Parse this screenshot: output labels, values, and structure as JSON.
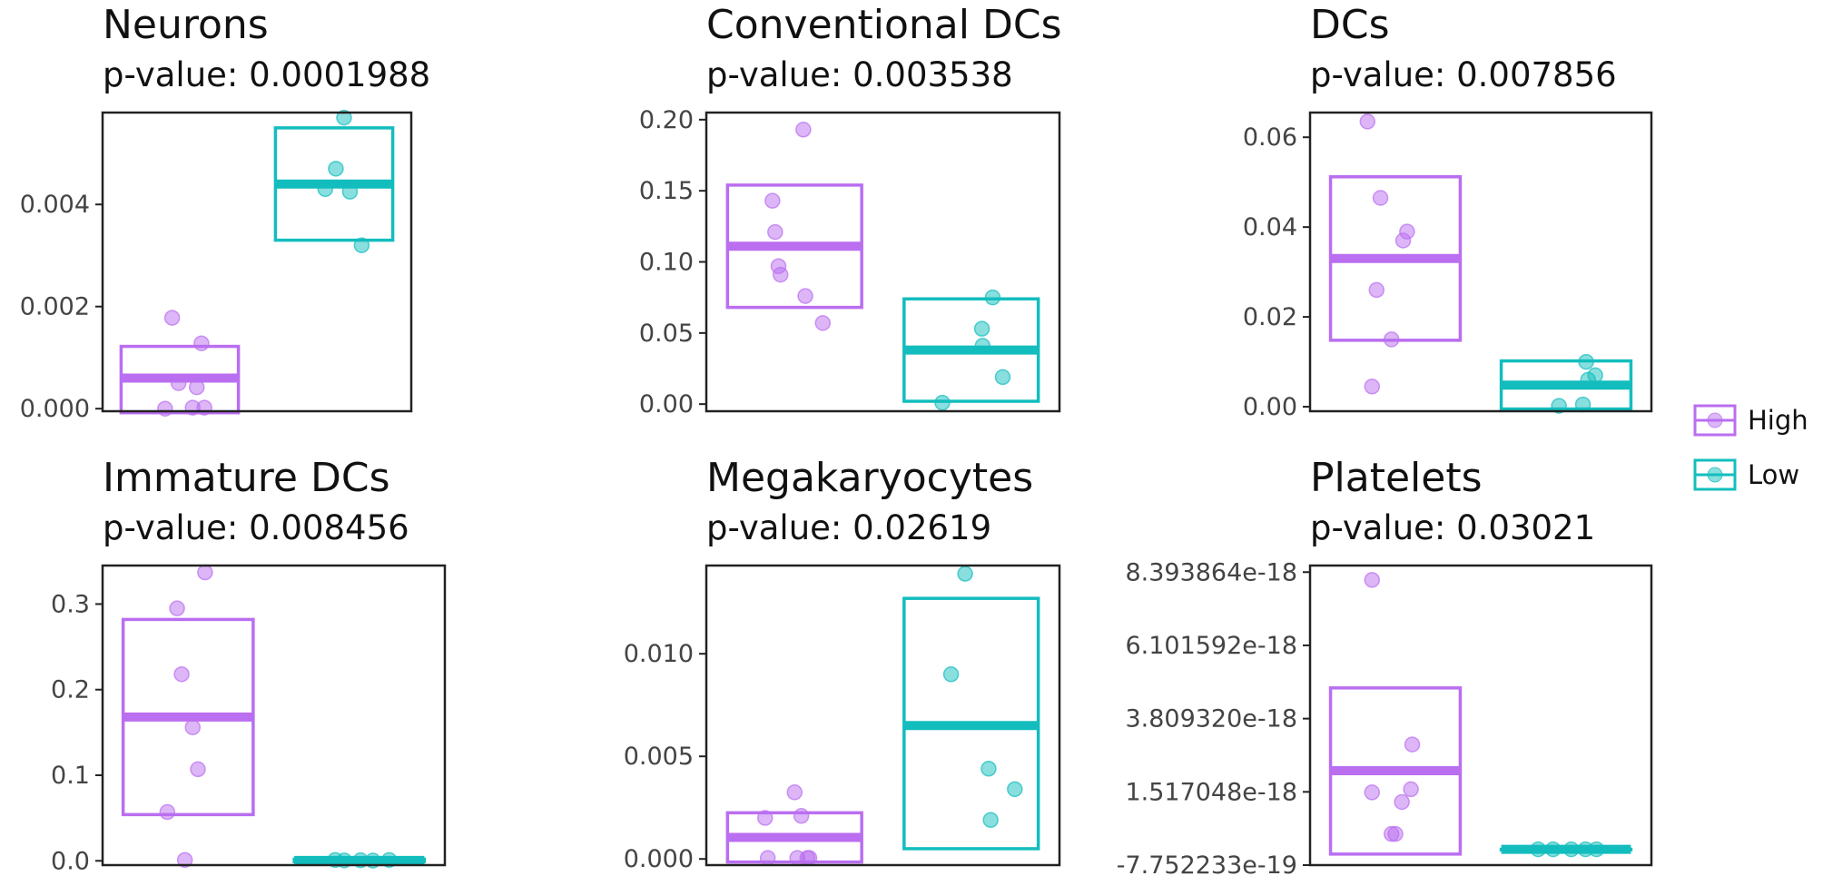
{
  "colors": {
    "High": "#BA6EF0",
    "Low": "#13BDBE",
    "axis": "#222222",
    "text": "#444444"
  },
  "legend": {
    "placement": "right",
    "entries": [
      {
        "label": "High",
        "group": "High"
      },
      {
        "label": "Low",
        "group": "Low"
      }
    ]
  },
  "chart_data": [
    {
      "type": "crossbar-dot",
      "title": "Neurons",
      "subtitle": "p-value: 0.0001988",
      "ylim": [
        -5e-05,
        0.0058
      ],
      "yticks": [
        0,
        0.002,
        0.004
      ],
      "ytick_labels": [
        "0.000",
        "0.002",
        "0.004"
      ],
      "groups": [
        "High",
        "Low"
      ],
      "series": [
        {
          "name": "High",
          "box": {
            "min": -8e-05,
            "mean": 0.0006,
            "max": 0.00122
          },
          "points": [
            [
              -0.25,
              0.0
            ],
            [
              -0.13,
              0.00178
            ],
            [
              -0.02,
              0.0005
            ],
            [
              0.22,
              2e-05
            ],
            [
              0.29,
              0.00042
            ],
            [
              0.37,
              0.00128
            ],
            [
              0.42,
              2e-05
            ]
          ]
        },
        {
          "name": "Low",
          "box": {
            "min": 0.0033,
            "mean": 0.0044,
            "max": 0.0055
          },
          "points": [
            [
              -0.15,
              0.0043
            ],
            [
              0.03,
              0.0047
            ],
            [
              0.17,
              0.0057
            ],
            [
              0.27,
              0.00425
            ],
            [
              0.47,
              0.0032
            ]
          ]
        }
      ]
    },
    {
      "type": "crossbar-dot",
      "title": "Conventional DCs",
      "subtitle": "p-value: 0.003538",
      "ylim": [
        -0.005,
        0.205
      ],
      "yticks": [
        0,
        0.05,
        0.1,
        0.15,
        0.2
      ],
      "ytick_labels": [
        "0.00",
        "0.05",
        "0.10",
        "0.15",
        "0.20"
      ],
      "groups": [
        "High",
        "Low"
      ],
      "series": [
        {
          "name": "High",
          "box": {
            "min": 0.068,
            "mean": 0.111,
            "max": 0.154
          },
          "points": [
            [
              -0.33,
              0.143
            ],
            [
              -0.29,
              0.121
            ],
            [
              -0.24,
              0.097
            ],
            [
              -0.21,
              0.091
            ],
            [
              0.13,
              0.193
            ],
            [
              0.16,
              0.076
            ],
            [
              0.42,
              0.057
            ]
          ]
        },
        {
          "name": "Low",
          "box": {
            "min": 0.002,
            "mean": 0.038,
            "max": 0.074
          },
          "points": [
            [
              -0.43,
              0.001
            ],
            [
              0.16,
              0.053
            ],
            [
              0.17,
              0.041
            ],
            [
              0.32,
              0.075
            ],
            [
              0.47,
              0.019
            ]
          ]
        }
      ]
    },
    {
      "type": "crossbar-dot",
      "title": "DCs",
      "subtitle": "p-value: 0.007856",
      "ylim": [
        -0.001,
        0.0655
      ],
      "yticks": [
        0,
        0.02,
        0.04,
        0.06
      ],
      "ytick_labels": [
        "0.00",
        "0.02",
        "0.04",
        "0.06"
      ],
      "groups": [
        "High",
        "Low"
      ],
      "series": [
        {
          "name": "High",
          "box": {
            "min": 0.0148,
            "mean": 0.033,
            "max": 0.0512
          },
          "points": [
            [
              -0.43,
              0.0635
            ],
            [
              -0.36,
              0.0045
            ],
            [
              -0.29,
              0.026
            ],
            [
              -0.23,
              0.0465
            ],
            [
              -0.06,
              0.015
            ],
            [
              0.12,
              0.037
            ],
            [
              0.18,
              0.039
            ]
          ]
        },
        {
          "name": "Low",
          "box": {
            "min": -0.0005,
            "mean": 0.0048,
            "max": 0.0102
          },
          "points": [
            [
              -0.11,
              0.0002
            ],
            [
              0.26,
              0.0005
            ],
            [
              0.31,
              0.01
            ],
            [
              0.34,
              0.006
            ],
            [
              0.45,
              0.007
            ]
          ]
        }
      ]
    },
    {
      "type": "crossbar-dot",
      "title": "Immature DCs",
      "subtitle": "p-value: 0.008456",
      "ylim": [
        -0.005,
        0.345
      ],
      "yticks": [
        0,
        0.1,
        0.2,
        0.3
      ],
      "ytick_labels": [
        "0.0",
        "0.1",
        "0.2",
        "0.3"
      ],
      "groups": [
        "High",
        "Low"
      ],
      "series": [
        {
          "name": "High",
          "box": {
            "min": 0.054,
            "mean": 0.168,
            "max": 0.282
          },
          "points": [
            [
              -0.32,
              0.057
            ],
            [
              -0.17,
              0.295
            ],
            [
              -0.1,
              0.218
            ],
            [
              -0.05,
              0.001
            ],
            [
              0.07,
              0.156
            ],
            [
              0.15,
              0.107
            ],
            [
              0.26,
              0.337
            ]
          ]
        },
        {
          "name": "Low",
          "box": {
            "min": -0.001,
            "mean": 0.0005,
            "max": 0.002
          },
          "points": [
            [
              -0.37,
              0.001
            ],
            [
              -0.23,
              0.0005
            ],
            [
              0.02,
              0.0007
            ],
            [
              0.21,
              0.0003
            ],
            [
              0.46,
              0.001
            ]
          ]
        }
      ]
    },
    {
      "type": "crossbar-dot",
      "title": "Megakaryocytes",
      "subtitle": "p-value: 0.02619",
      "ylim": [
        -0.0003,
        0.0143
      ],
      "yticks": [
        0,
        0.005,
        0.01
      ],
      "ytick_labels": [
        "0.000",
        "0.005",
        "0.010"
      ],
      "groups": [
        "High",
        "Low"
      ],
      "series": [
        {
          "name": "High",
          "box": {
            "min": -0.00015,
            "mean": 0.00105,
            "max": 0.00225
          },
          "points": [
            [
              -0.44,
              0.002
            ],
            [
              -0.4,
              5e-05
            ],
            [
              0.0,
              0.00325
            ],
            [
              0.04,
              5e-05
            ],
            [
              0.1,
              0.0021
            ],
            [
              0.19,
              5e-05
            ],
            [
              0.22,
              5e-05
            ]
          ]
        },
        {
          "name": "Low",
          "box": {
            "min": 0.0005,
            "mean": 0.0065,
            "max": 0.0127
          },
          "points": [
            [
              -0.3,
              0.009
            ],
            [
              -0.09,
              0.0139
            ],
            [
              0.26,
              0.0044
            ],
            [
              0.29,
              0.0019
            ],
            [
              0.65,
              0.0034
            ]
          ]
        }
      ]
    },
    {
      "type": "crossbar-dot",
      "title": "Platelets",
      "subtitle": "p-value: 0.03021",
      "ylim": [
        -7.752233e-19,
        8.6e-18
      ],
      "yticks": [
        -7.752233e-19,
        1.517048e-18,
        3.80932e-18,
        6.101592e-18,
        8.393864e-18
      ],
      "ytick_labels": [
        "-7.752233e-19",
        "1.517048e-18",
        "3.809320e-18",
        "6.101592e-18",
        "8.393864e-18"
      ],
      "groups": [
        "High",
        "Low"
      ],
      "series": [
        {
          "name": "High",
          "box": {
            "min": -4.3e-19,
            "mean": 2.18e-18,
            "max": 4.77e-18
          },
          "points": [
            [
              -0.36,
              1.5e-18
            ],
            [
              -0.36,
              8.15e-18
            ],
            [
              -0.06,
              2e-19
            ],
            [
              0.0,
              2e-19
            ],
            [
              0.1,
              1.2e-18
            ],
            [
              0.24,
              1.6e-18
            ],
            [
              0.26,
              3e-18
            ]
          ]
        },
        {
          "name": "Low",
          "box": {
            "min": -2.8e-19,
            "mean": -2.8e-19,
            "max": -2.8e-19
          },
          "points": [
            [
              -0.43,
              -2.8e-19
            ],
            [
              -0.2,
              -2.8e-19
            ],
            [
              0.08,
              -2.8e-19
            ],
            [
              0.3,
              -2.8e-19
            ],
            [
              0.47,
              -2.8e-19
            ]
          ]
        }
      ]
    }
  ]
}
